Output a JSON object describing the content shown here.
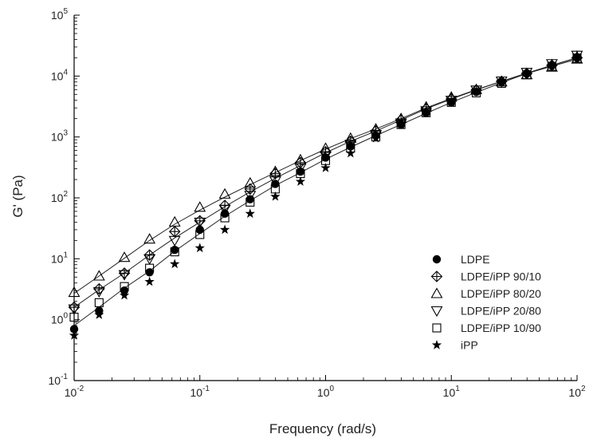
{
  "chart_data": {
    "type": "scatter",
    "xlabel": "Frequency (rad/s)",
    "ylabel": "G' (Pa)",
    "x_scale": "log",
    "y_scale": "log",
    "xlim": [
      0.01,
      100
    ],
    "ylim": [
      0.1,
      100000
    ],
    "grid": false,
    "legend_position": "right",
    "x_ticks": [
      {
        "base": "10",
        "exp": "-2",
        "value": 0.01
      },
      {
        "base": "10",
        "exp": "-1",
        "value": 0.1
      },
      {
        "base": "10",
        "exp": "0",
        "value": 1
      },
      {
        "base": "10",
        "exp": "1",
        "value": 10
      },
      {
        "base": "10",
        "exp": "2",
        "value": 100
      }
    ],
    "y_ticks": [
      {
        "base": "10",
        "exp": "-1",
        "value": 0.1
      },
      {
        "base": "10",
        "exp": "0",
        "value": 1
      },
      {
        "base": "10",
        "exp": "1",
        "value": 10
      },
      {
        "base": "10",
        "exp": "2",
        "value": 100
      },
      {
        "base": "10",
        "exp": "3",
        "value": 1000
      },
      {
        "base": "10",
        "exp": "4",
        "value": 10000
      },
      {
        "base": "10",
        "exp": "5",
        "value": 100000
      }
    ],
    "x": [
      0.01,
      0.0158,
      0.0251,
      0.0398,
      0.0631,
      0.1,
      0.158,
      0.251,
      0.398,
      0.631,
      1.0,
      1.58,
      2.51,
      3.98,
      6.31,
      10.0,
      15.8,
      25.1,
      39.8,
      63.1,
      100.0
    ],
    "series": [
      {
        "name": "LDPE",
        "marker": "circle",
        "values": [
          0.7,
          1.4,
          3.0,
          6.0,
          14.0,
          30.0,
          55.0,
          95.0,
          170.0,
          270.0,
          460.0,
          700.0,
          1050.0,
          1600.0,
          2500.0,
          3700.0,
          5500.0,
          8000.0,
          11000.0,
          15000.0,
          20000.0
        ]
      },
      {
        "name": "LDPE/iPP 90/10",
        "marker": "diamond-cross",
        "values": [
          1.6,
          3.2,
          5.8,
          11.5,
          28.0,
          42.0,
          75.0,
          140.0,
          250.0,
          380.0,
          570.0,
          850.0,
          1250.0,
          1900.0,
          2900.0,
          4200.0,
          5900.0,
          8200.0,
          11000.0,
          15000.0,
          20000.0
        ]
      },
      {
        "name": "LDPE/iPP 80/20",
        "marker": "triangle-up",
        "values": [
          2.8,
          5.2,
          10.5,
          21.0,
          40.0,
          70.0,
          115.0,
          175.0,
          270.0,
          420.0,
          650.0,
          950.0,
          1350.0,
          2000.0,
          3100.0,
          4500.0,
          6000.0,
          8000.0,
          10500.0,
          14000.0,
          19000.0
        ]
      },
      {
        "name": "LDPE/iPP 20/80",
        "marker": "triangle-down",
        "values": [
          1.5,
          2.9,
          5.5,
          10.0,
          20.0,
          40.0,
          65.0,
          110.0,
          190.0,
          310.0,
          490.0,
          760.0,
          1100.0,
          1700.0,
          2700.0,
          4000.0,
          5900.0,
          8300.0,
          11500.0,
          16000.0,
          22000.0
        ]
      },
      {
        "name": "LDPE/iPP 10/90",
        "marker": "square",
        "values": [
          1.1,
          1.9,
          3.5,
          7.0,
          13.0,
          25.0,
          47.0,
          85.0,
          140.0,
          250.0,
          410.0,
          660.0,
          1000.0,
          1600.0,
          2500.0,
          3700.0,
          5300.0,
          7600.0,
          10500.0,
          14500.0,
          19500.0
        ]
      },
      {
        "name": "iPP",
        "marker": "star",
        "values": [
          0.55,
          1.2,
          2.5,
          4.2,
          8.2,
          15.0,
          30.0,
          55.0,
          105.0,
          185.0,
          310.0,
          540.0,
          950.0,
          1600.0,
          2500.0,
          3700.0,
          5600.0,
          8200.0,
          11500.0,
          16000.0,
          22000.0
        ]
      }
    ],
    "fit_lines": [
      [
        0.8,
        1.6,
        3.3,
        6.3,
        13.3,
        26.0,
        50.0,
        90.0,
        160.0,
        260.0,
        430.0,
        680.0,
        1050.0,
        1600.0,
        2450.0,
        3700.0,
        5400.0,
        7800.0,
        11000.0,
        15000.0,
        20000.0
      ],
      [
        1.6,
        3.1,
        5.8,
        11.5,
        22.0,
        40.0,
        72.0,
        125.0,
        210.0,
        340.0,
        550.0,
        850.0,
        1250.0,
        1900.0,
        2900.0,
        4200.0,
        5900.0,
        8200.0,
        11200.0,
        15000.0,
        20000.0
      ],
      [
        2.7,
        5.2,
        10.2,
        20.0,
        37.0,
        63.0,
        103.0,
        165.0,
        260.0,
        410.0,
        630.0,
        940.0,
        1350.0,
        2000.0,
        3000.0,
        4300.0,
        6000.0,
        8200.0,
        11000.0,
        14500.0,
        19000.0
      ]
    ]
  }
}
